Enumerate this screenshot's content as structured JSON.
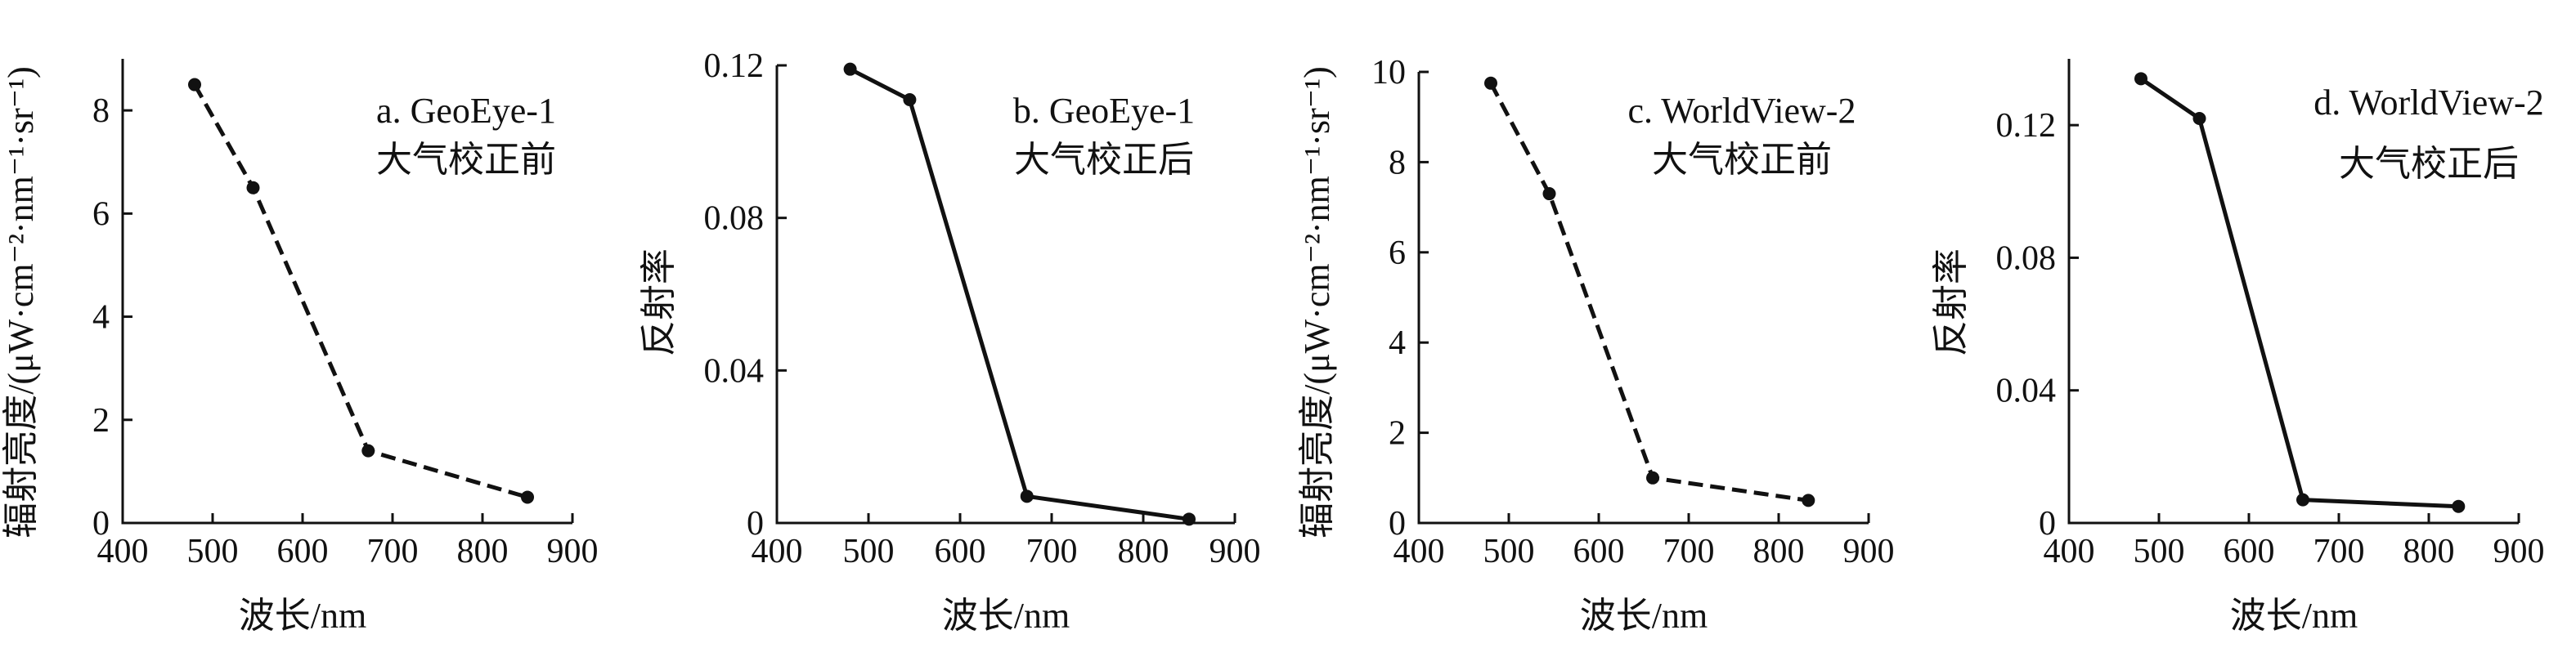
{
  "chart_data": [
    {
      "type": "line",
      "annotation": [
        "a. GeoEye-1",
        "大气校正前"
      ],
      "xlabel": "波长/nm",
      "ylabel": "辐射亮度/(μW·cm⁻²·nm⁻¹·sr⁻¹)",
      "xlim": [
        400,
        900
      ],
      "ylim": [
        0,
        9
      ],
      "xticks": [
        400,
        500,
        600,
        700,
        800,
        900
      ],
      "yticks": [
        0,
        2,
        4,
        6,
        8
      ],
      "ytick_labels": [
        "0",
        "2",
        "4",
        "6",
        "8"
      ],
      "line_style": "dashed",
      "series": [
        {
          "x": [
            480,
            545,
            673,
            850
          ],
          "y": [
            8.5,
            6.5,
            1.4,
            0.5
          ]
        }
      ]
    },
    {
      "type": "line",
      "annotation": [
        "b. GeoEye-1",
        "大气校正后"
      ],
      "xlabel": "波长/nm",
      "ylabel": "反射率",
      "xlim": [
        400,
        900
      ],
      "ylim": [
        0,
        0.12
      ],
      "xticks": [
        400,
        500,
        600,
        700,
        800,
        900
      ],
      "yticks": [
        0,
        0.04,
        0.08,
        0.12
      ],
      "ytick_labels": [
        "0",
        "0.04",
        "0.08",
        "0.12"
      ],
      "line_style": "solid",
      "series": [
        {
          "x": [
            480,
            545,
            673,
            850
          ],
          "y": [
            0.119,
            0.111,
            0.007,
            0.001
          ]
        }
      ]
    },
    {
      "type": "line",
      "annotation": [
        "c. WorldView-2",
        "大气校正前"
      ],
      "xlabel": "波长/nm",
      "ylabel": "辐射亮度/(μW·cm⁻²·nm⁻¹·sr⁻¹)",
      "xlim": [
        400,
        900
      ],
      "ylim": [
        0,
        10
      ],
      "xticks": [
        400,
        500,
        600,
        700,
        800,
        900
      ],
      "yticks": [
        0,
        2,
        4,
        6,
        8,
        10
      ],
      "ytick_labels": [
        "0",
        "2",
        "4",
        "6",
        "8",
        "10"
      ],
      "line_style": "dashed",
      "series": [
        {
          "x": [
            480,
            545,
            660,
            833
          ],
          "y": [
            9.75,
            7.3,
            1.0,
            0.5
          ]
        }
      ]
    },
    {
      "type": "line",
      "annotation": [
        "d. WorldView-2",
        "大气校正后"
      ],
      "xlabel": "波长/nm",
      "ylabel": "反射率",
      "xlim": [
        400,
        900
      ],
      "ylim": [
        0,
        0.14
      ],
      "xticks": [
        400,
        500,
        600,
        700,
        800,
        900
      ],
      "yticks": [
        0,
        0.04,
        0.08,
        0.12
      ],
      "ytick_labels": [
        "0",
        "0.04",
        "0.08",
        "0.12"
      ],
      "line_style": "solid",
      "series": [
        {
          "x": [
            480,
            545,
            660,
            833
          ],
          "y": [
            0.134,
            0.122,
            0.007,
            0.005
          ]
        }
      ]
    }
  ]
}
